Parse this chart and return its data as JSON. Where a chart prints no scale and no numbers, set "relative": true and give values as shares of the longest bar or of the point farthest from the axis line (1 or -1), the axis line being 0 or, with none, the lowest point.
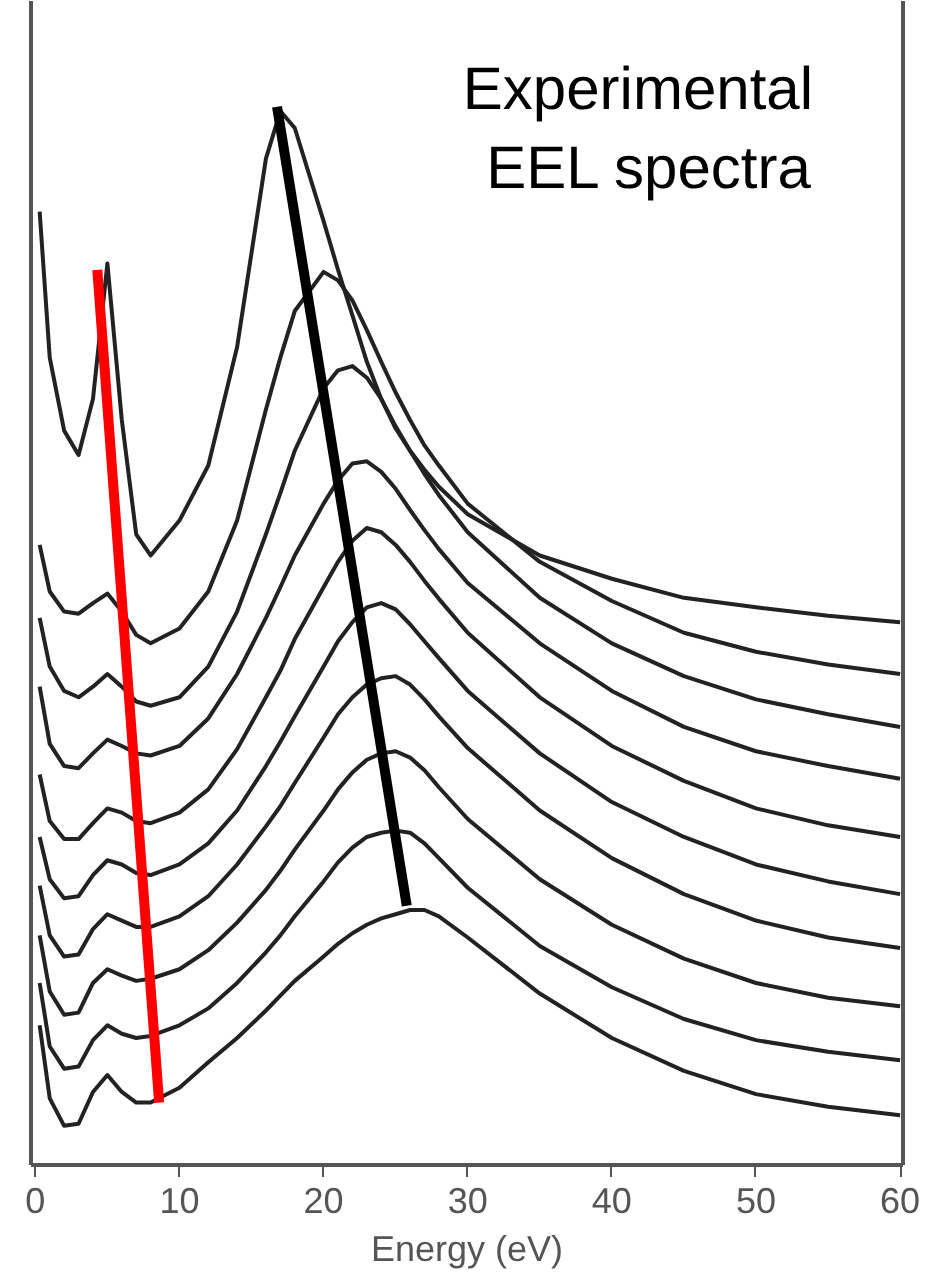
{
  "chart_data": {
    "type": "line",
    "relative": true,
    "xlabel": "Energy (eV)",
    "xlim": [
      -0.3,
      60.2
    ],
    "xticks": [
      0,
      10,
      20,
      30,
      40,
      50,
      60
    ],
    "grid": false,
    "annotations": [
      "Experimental\nEEL spectra"
    ],
    "x": [
      0.3,
      1,
      2,
      3,
      4,
      5,
      6,
      7,
      8,
      10,
      12,
      14,
      16,
      17,
      18,
      20,
      21,
      22,
      23,
      24,
      25,
      26,
      27,
      28,
      30,
      35,
      40,
      45,
      50,
      55,
      60
    ],
    "series": [
      {
        "color": "#222222",
        "values": [
          0.901,
          0.763,
          0.694,
          0.671,
          0.724,
          0.852,
          0.704,
          0.596,
          0.576,
          0.609,
          0.661,
          0.773,
          0.951,
          0.996,
          0.98,
          0.892,
          0.846,
          0.803,
          0.759,
          0.724,
          0.696,
          0.675,
          0.657,
          0.641,
          0.615,
          0.576,
          0.554,
          0.536,
          0.527,
          0.519,
          0.513
        ]
      },
      {
        "color": "#222222",
        "values": [
          0.586,
          0.542,
          0.523,
          0.521,
          0.531,
          0.54,
          0.523,
          0.501,
          0.493,
          0.507,
          0.542,
          0.609,
          0.714,
          0.763,
          0.807,
          0.844,
          0.836,
          0.817,
          0.789,
          0.759,
          0.73,
          0.704,
          0.68,
          0.661,
          0.625,
          0.57,
          0.533,
          0.503,
          0.485,
          0.473,
          0.464
        ]
      },
      {
        "color": "#222222",
        "values": [
          0.517,
          0.471,
          0.448,
          0.442,
          0.452,
          0.464,
          0.452,
          0.438,
          0.434,
          0.442,
          0.471,
          0.523,
          0.596,
          0.635,
          0.675,
          0.734,
          0.751,
          0.755,
          0.744,
          0.724,
          0.698,
          0.675,
          0.653,
          0.633,
          0.598,
          0.536,
          0.493,
          0.462,
          0.44,
          0.426,
          0.414
        ]
      },
      {
        "color": "#222222",
        "values": [
          0.452,
          0.398,
          0.377,
          0.375,
          0.389,
          0.402,
          0.396,
          0.389,
          0.387,
          0.396,
          0.422,
          0.464,
          0.517,
          0.546,
          0.576,
          0.625,
          0.647,
          0.663,
          0.665,
          0.655,
          0.639,
          0.619,
          0.6,
          0.582,
          0.55,
          0.493,
          0.448,
          0.414,
          0.391,
          0.377,
          0.365
        ]
      },
      {
        "color": "#222222",
        "values": [
          0.369,
          0.325,
          0.308,
          0.308,
          0.323,
          0.337,
          0.333,
          0.325,
          0.323,
          0.333,
          0.355,
          0.393,
          0.442,
          0.467,
          0.497,
          0.546,
          0.57,
          0.59,
          0.602,
          0.598,
          0.586,
          0.57,
          0.552,
          0.535,
          0.503,
          0.442,
          0.396,
          0.363,
          0.337,
          0.321,
          0.31
        ]
      },
      {
        "color": "#222222",
        "values": [
          0.31,
          0.27,
          0.252,
          0.254,
          0.274,
          0.288,
          0.284,
          0.276,
          0.274,
          0.284,
          0.304,
          0.335,
          0.377,
          0.4,
          0.424,
          0.471,
          0.495,
          0.513,
          0.527,
          0.531,
          0.525,
          0.511,
          0.495,
          0.479,
          0.448,
          0.389,
          0.343,
          0.31,
          0.284,
          0.268,
          0.256
        ]
      },
      {
        "color": "#222222",
        "values": [
          0.264,
          0.217,
          0.197,
          0.199,
          0.223,
          0.237,
          0.231,
          0.225,
          0.225,
          0.235,
          0.254,
          0.284,
          0.32,
          0.339,
          0.361,
          0.404,
          0.426,
          0.442,
          0.454,
          0.46,
          0.462,
          0.454,
          0.44,
          0.424,
          0.394,
          0.335,
          0.29,
          0.256,
          0.231,
          0.215,
          0.205
        ]
      },
      {
        "color": "#222222",
        "values": [
          0.217,
          0.164,
          0.142,
          0.144,
          0.172,
          0.185,
          0.179,
          0.174,
          0.176,
          0.185,
          0.203,
          0.229,
          0.26,
          0.278,
          0.298,
          0.335,
          0.355,
          0.371,
          0.383,
          0.389,
          0.391,
          0.385,
          0.373,
          0.357,
          0.327,
          0.27,
          0.227,
          0.195,
          0.172,
          0.158,
          0.15
        ]
      },
      {
        "color": "#222222",
        "values": [
          0.172,
          0.112,
          0.091,
          0.093,
          0.118,
          0.132,
          0.124,
          0.12,
          0.122,
          0.132,
          0.148,
          0.172,
          0.201,
          0.217,
          0.235,
          0.268,
          0.286,
          0.3,
          0.31,
          0.314,
          0.316,
          0.314,
          0.304,
          0.29,
          0.262,
          0.207,
          0.168,
          0.138,
          0.118,
          0.107,
          0.099
        ]
      },
      {
        "color": "#222222",
        "values": [
          0.132,
          0.063,
          0.037,
          0.039,
          0.069,
          0.085,
          0.069,
          0.059,
          0.059,
          0.073,
          0.097,
          0.12,
          0.146,
          0.16,
          0.174,
          0.197,
          0.209,
          0.219,
          0.227,
          0.233,
          0.237,
          0.241,
          0.241,
          0.235,
          0.215,
          0.162,
          0.12,
          0.089,
          0.067,
          0.055,
          0.047
        ]
      },
      {
        "color": "#ff0000",
        "x": [
          4.3,
          8.59
        ],
        "values": [
          0.846,
          0.059
        ]
      },
      {
        "color": "#000000",
        "x": [
          16.77,
          25.77
        ],
        "values": [
          1.0,
          0.245
        ]
      }
    ]
  }
}
